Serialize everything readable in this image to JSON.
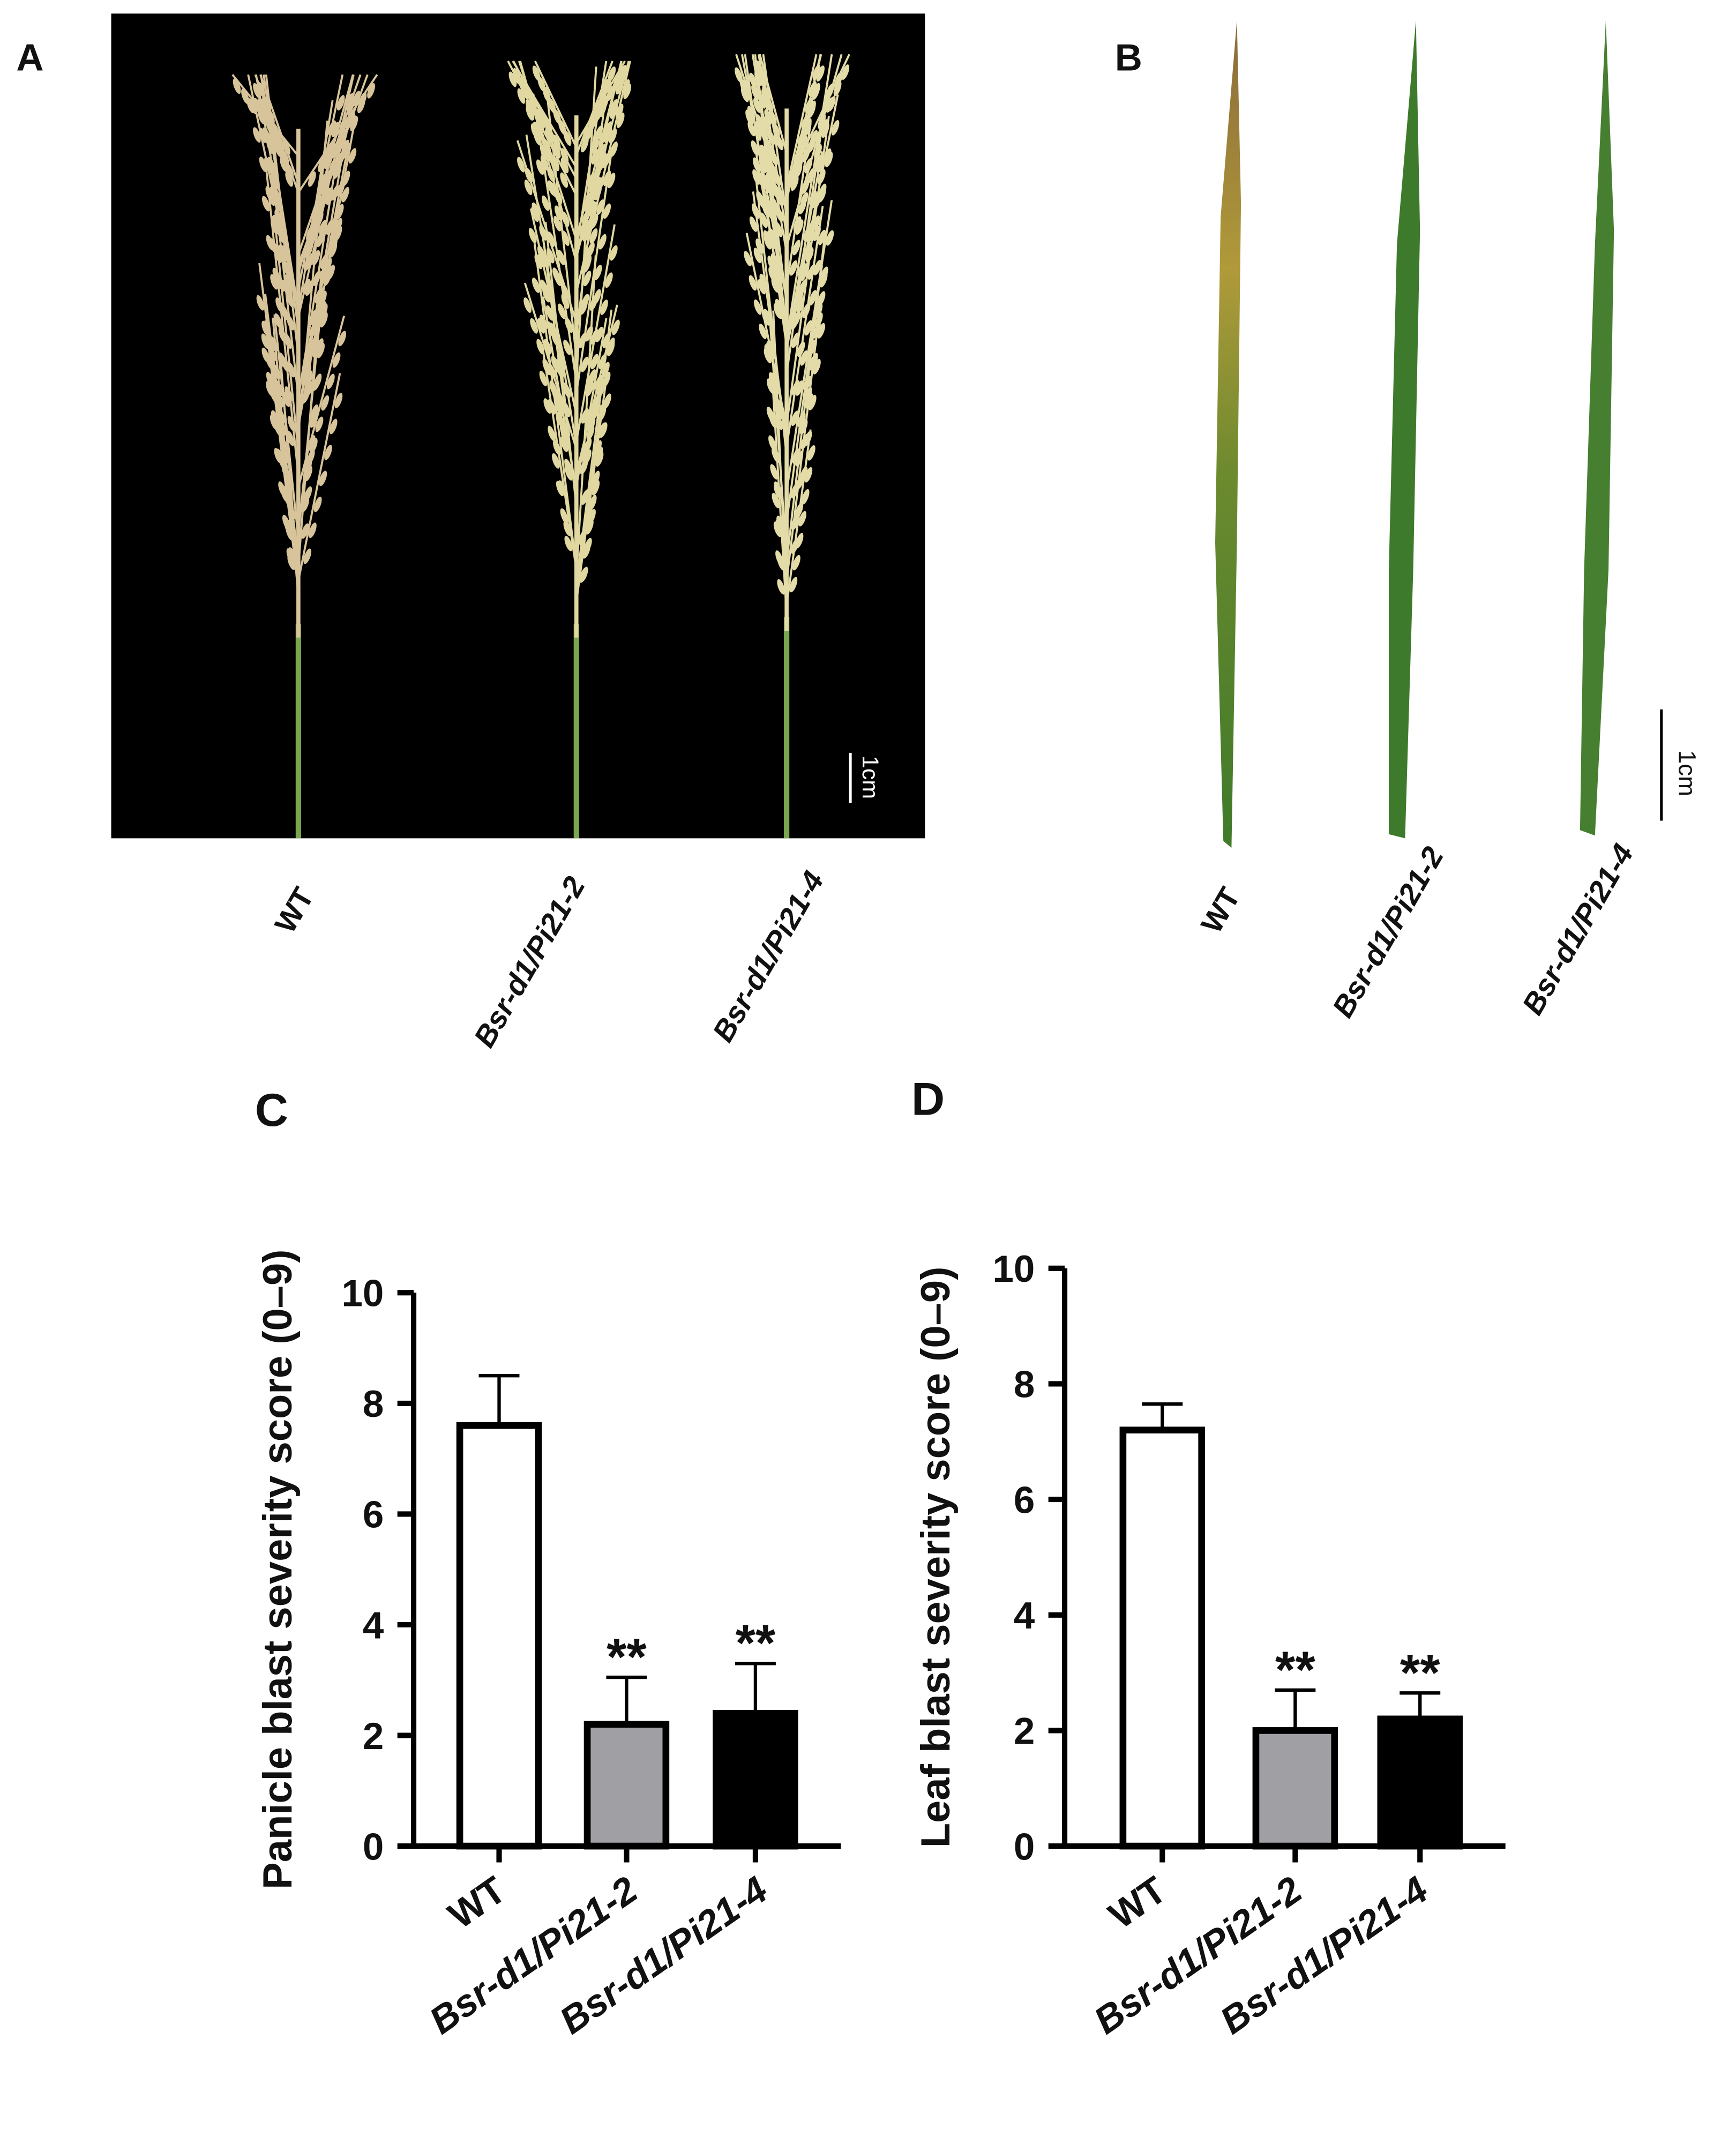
{
  "panels": [
    {
      "label": "A",
      "scale_bar": "1cm",
      "samples": [
        "WT",
        "Bsr-d1/Pi21-2",
        "Bsr-d1/Pi21-4"
      ]
    },
    {
      "label": "B",
      "scale_bar": "1cm",
      "samples": [
        "WT",
        "Bsr-d1/Pi21-2",
        "Bsr-d1/Pi21-4"
      ]
    }
  ],
  "chart_data": [
    {
      "type": "bar",
      "panel_label": "C",
      "ylabel": "Panicle blast severity score (0–9)",
      "categories": [
        "WT",
        "Bsr-d1/Pi21-2",
        "Bsr-d1/Pi21-4"
      ],
      "values": [
        7.6,
        2.2,
        2.4
      ],
      "errors": [
        0.9,
        0.85,
        0.9
      ],
      "colors": [
        "#ffffff",
        "#a0a0a4",
        "#000000"
      ],
      "significance": [
        null,
        "**",
        "**"
      ],
      "ylim": [
        0,
        10
      ],
      "yticks": [
        0,
        2,
        4,
        6,
        8,
        10
      ]
    },
    {
      "type": "bar",
      "panel_label": "D",
      "ylabel": "Leaf blast severity score (0–9)",
      "categories": [
        "WT",
        "Bsr-d1/Pi21-2",
        "Bsr-d1/Pi21-4"
      ],
      "values": [
        7.2,
        2.0,
        2.2
      ],
      "errors": [
        0.45,
        0.7,
        0.45
      ],
      "colors": [
        "#ffffff",
        "#a0a0a4",
        "#000000"
      ],
      "significance": [
        null,
        "**",
        "**"
      ],
      "ylim": [
        0,
        10
      ],
      "yticks": [
        0,
        2,
        4,
        6,
        8,
        10
      ]
    }
  ]
}
